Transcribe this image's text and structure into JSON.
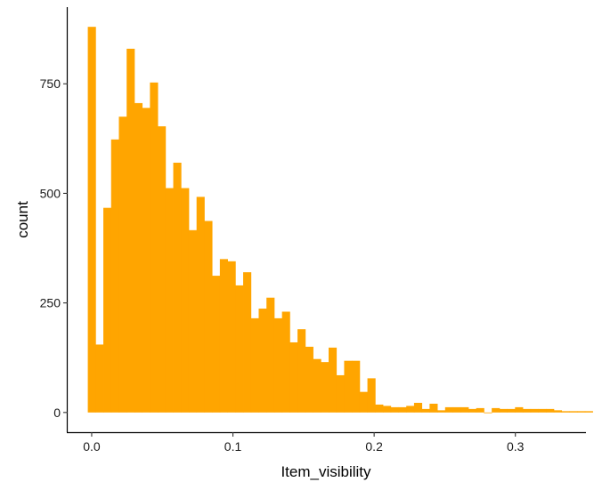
{
  "chart_data": {
    "type": "histogram",
    "xlabel": "Item_visibility",
    "ylabel": "count",
    "xlim": [
      -0.017,
      0.35
    ],
    "ylim": [
      -45,
      925
    ],
    "x_ticks": [
      0.0,
      0.1,
      0.2,
      0.3
    ],
    "x_tick_labels": [
      "0.0",
      "0.1",
      "0.2",
      "0.3"
    ],
    "y_ticks": [
      0,
      250,
      500,
      750
    ],
    "y_tick_labels": [
      "0",
      "250",
      "500",
      "750"
    ],
    "bar_color": "#FFA500",
    "bin_start": -0.00275,
    "bin_width": 0.0055,
    "counts": [
      880,
      155,
      467,
      623,
      675,
      830,
      706,
      695,
      753,
      653,
      512,
      570,
      512,
      416,
      492,
      437,
      312,
      350,
      345,
      290,
      320,
      215,
      237,
      262,
      215,
      230,
      160,
      190,
      150,
      122,
      115,
      148,
      85,
      118,
      118,
      47,
      78,
      18,
      15,
      12,
      12,
      15,
      22,
      8,
      20,
      5,
      12,
      12,
      12,
      8,
      10,
      0,
      10,
      8,
      8,
      12,
      8,
      8,
      8,
      8,
      5,
      3,
      3,
      3,
      3
    ],
    "grid": false,
    "legend": "none"
  }
}
